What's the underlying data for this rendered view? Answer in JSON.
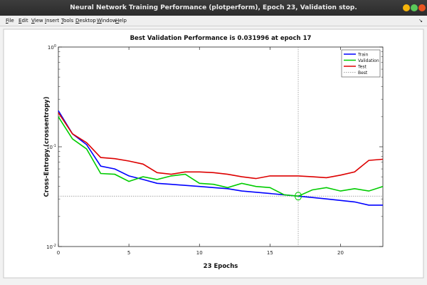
{
  "window": {
    "title": "Neural Network Training Performance (plotperform), Epoch 23, Validation stop."
  },
  "menubar": {
    "items": [
      {
        "label": "File",
        "key": "F",
        "rest": "ile"
      },
      {
        "label": "Edit",
        "key": "E",
        "rest": "dit"
      },
      {
        "label": "View",
        "key": "V",
        "rest": "iew"
      },
      {
        "label": "Insert",
        "key": "I",
        "rest": "nsert"
      },
      {
        "label": "Tools",
        "key": "T",
        "rest": "ools"
      },
      {
        "label": "Desktop",
        "key": "D",
        "rest": "esktop"
      },
      {
        "label": "Window",
        "key": "W",
        "rest": "indow"
      },
      {
        "label": "Help",
        "key": "H",
        "rest": "elp"
      }
    ],
    "dock_arrow": "↘"
  },
  "colors": {
    "train": "#0000ff",
    "validation": "#00cc00",
    "test": "#dd0000",
    "best": "#888888",
    "close": "#e95420",
    "maximize": "#5ac85a",
    "minimize": "#f5b40a"
  },
  "chart_data": {
    "type": "line",
    "title": "Best Validation Performance is 0.031996 at epoch 17",
    "xlabel": "23 Epochs",
    "ylabel": "Cross-Entropy  (crossentropy)",
    "xlim": [
      0,
      23
    ],
    "ylim": [
      0.01,
      1
    ],
    "yscale": "log",
    "xticks": [
      0,
      5,
      10,
      15,
      20
    ],
    "yticks": [
      {
        "value": 1,
        "base": "10",
        "exp": "0"
      },
      {
        "value": 0.1,
        "base": "10",
        "exp": "-1"
      },
      {
        "value": 0.01,
        "base": "10",
        "exp": "-2"
      }
    ],
    "legend_position": "top-right",
    "x": [
      0,
      1,
      2,
      3,
      4,
      5,
      6,
      7,
      8,
      9,
      10,
      11,
      12,
      13,
      14,
      15,
      16,
      17,
      18,
      19,
      20,
      21,
      22,
      23
    ],
    "series": [
      {
        "name": "Train",
        "color_key": "train",
        "values": [
          0.23,
          0.135,
          0.105,
          0.064,
          0.06,
          0.051,
          0.047,
          0.043,
          0.042,
          0.041,
          0.04,
          0.039,
          0.038,
          0.036,
          0.035,
          0.034,
          0.033,
          0.032,
          0.031,
          0.03,
          0.029,
          0.028,
          0.026,
          0.026
        ]
      },
      {
        "name": "Validation",
        "color_key": "validation",
        "values": [
          0.2,
          0.12,
          0.095,
          0.054,
          0.053,
          0.045,
          0.05,
          0.047,
          0.051,
          0.053,
          0.043,
          0.042,
          0.039,
          0.043,
          0.04,
          0.039,
          0.033,
          0.032,
          0.037,
          0.039,
          0.036,
          0.038,
          0.036,
          0.04
        ]
      },
      {
        "name": "Test",
        "color_key": "test",
        "values": [
          0.22,
          0.135,
          0.11,
          0.078,
          0.076,
          0.072,
          0.067,
          0.055,
          0.053,
          0.056,
          0.056,
          0.055,
          0.053,
          0.05,
          0.048,
          0.051,
          0.051,
          0.051,
          0.05,
          0.049,
          0.052,
          0.056,
          0.073,
          0.075
        ]
      }
    ],
    "best": {
      "epoch": 17,
      "value": 0.031996,
      "label": "Best"
    }
  }
}
